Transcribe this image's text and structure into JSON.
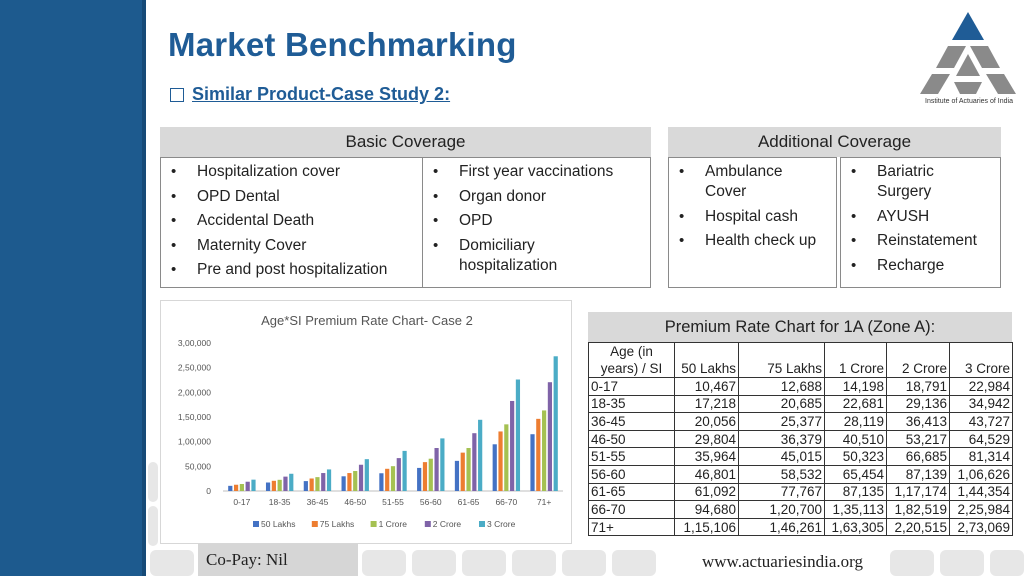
{
  "header": {
    "title": "Market Benchmarking",
    "subtitle": "Similar Product-Case Study 2:"
  },
  "logo": {
    "caption": "Institute of Actuaries of India",
    "icon": "iai-logo-icon"
  },
  "basic_coverage": {
    "heading": "Basic Coverage",
    "column1": [
      "Hospitalization cover",
      "OPD Dental",
      "Accidental Death",
      "Maternity Cover",
      "Pre and post hospitalization"
    ],
    "column2": [
      "First year vaccinations",
      "Organ donor",
      "OPD",
      "Domiciliary hospitalization"
    ]
  },
  "additional_coverage": {
    "heading": "Additional Coverage",
    "column1": [
      "Ambulance Cover",
      "Hospital cash",
      "Health check up"
    ],
    "column2": [
      "Bariatric Surgery",
      "AYUSH",
      "Reinstatement",
      "Recharge"
    ]
  },
  "chart_data": {
    "type": "bar",
    "title": "Age*SI Premium Rate Chart- Case 2",
    "xlabel": "",
    "ylabel": "",
    "ylim": [
      0,
      300000
    ],
    "yticks": [
      "0",
      "50,000",
      "1,00,000",
      "1,50,000",
      "2,00,000",
      "2,50,000",
      "3,00,000"
    ],
    "categories": [
      "0-17",
      "18-35",
      "36-45",
      "46-50",
      "51-55",
      "56-60",
      "61-65",
      "66-70",
      "71+"
    ],
    "legend_position": "bottom",
    "grid": false,
    "series": [
      {
        "name": "50 Lakhs",
        "color": "#4472c4",
        "values": [
          10467,
          17218,
          20056,
          29804,
          35964,
          46801,
          61092,
          94680,
          115106
        ]
      },
      {
        "name": "75 Lakhs",
        "color": "#ed7d31",
        "values": [
          12688,
          20685,
          25377,
          36379,
          45015,
          58532,
          77767,
          120700,
          146261
        ]
      },
      {
        "name": "1 Crore",
        "color": "#a5c152",
        "values": [
          14198,
          22681,
          28119,
          40510,
          50323,
          65454,
          87135,
          135113,
          163305
        ]
      },
      {
        "name": "2 Crore",
        "color": "#7f63a8",
        "values": [
          18791,
          29136,
          36413,
          53217,
          66685,
          87139,
          117174,
          182519,
          220515
        ]
      },
      {
        "name": "3 Crore",
        "color": "#4bacc6",
        "values": [
          22984,
          34942,
          43727,
          64529,
          81314,
          106626,
          144354,
          225984,
          273069
        ]
      }
    ]
  },
  "premium_table": {
    "heading": "Premium Rate Chart for 1A  (Zone A):",
    "first_header_lines": [
      "Age (in",
      "years) / SI"
    ],
    "columns": [
      "50 Lakhs",
      "75 Lakhs",
      "1 Crore",
      "2 Crore",
      "3 Crore"
    ],
    "rows": [
      [
        "0-17",
        "10,467",
        "12,688",
        "14,198",
        "18,791",
        "22,984"
      ],
      [
        "18-35",
        "17,218",
        "20,685",
        "22,681",
        "29,136",
        "34,942"
      ],
      [
        "36-45",
        "20,056",
        "25,377",
        "28,119",
        "36,413",
        "43,727"
      ],
      [
        "46-50",
        "29,804",
        "36,379",
        "40,510",
        "53,217",
        "64,529"
      ],
      [
        "51-55",
        "35,964",
        "45,015",
        "50,323",
        "66,685",
        "81,314"
      ],
      [
        "56-60",
        "46,801",
        "58,532",
        "65,454",
        "87,139",
        "1,06,626"
      ],
      [
        "61-65",
        "61,092",
        "77,767",
        "87,135",
        "1,17,174",
        "1,44,354"
      ],
      [
        "66-70",
        "94,680",
        "1,20,700",
        "1,35,113",
        "1,82,519",
        "2,25,984"
      ],
      [
        "71+",
        "1,15,106",
        "1,46,261",
        "1,63,305",
        "2,20,515",
        "2,73,069"
      ]
    ]
  },
  "footer": {
    "copay": "Co-Pay: Nil",
    "website": "www.actuariesindia.org"
  }
}
